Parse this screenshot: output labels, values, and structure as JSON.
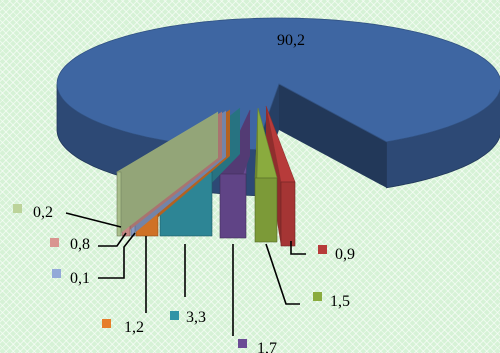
{
  "chart_data": {
    "type": "pie",
    "style": "3d-exploded",
    "title": "",
    "legend": "none",
    "slices": [
      {
        "label": "90,2",
        "value": 90.2,
        "color": "#3e66a2"
      },
      {
        "label": "0,9",
        "value": 0.9,
        "color": "#b73b3a"
      },
      {
        "label": "1,5",
        "value": 1.5,
        "color": "#8aab3e"
      },
      {
        "label": "1,7",
        "value": 1.7,
        "color": "#6b4c95"
      },
      {
        "label": "3,3",
        "value": 3.3,
        "color": "#3294a6"
      },
      {
        "label": "1,2",
        "value": 1.2,
        "color": "#e67e2a"
      },
      {
        "label": "0,1",
        "value": 0.1,
        "color": "#93a9d8"
      },
      {
        "label": "0,8",
        "value": 0.8,
        "color": "#d99590"
      },
      {
        "label": "0,2",
        "value": 0.2,
        "color": "#bcd39a"
      }
    ]
  }
}
